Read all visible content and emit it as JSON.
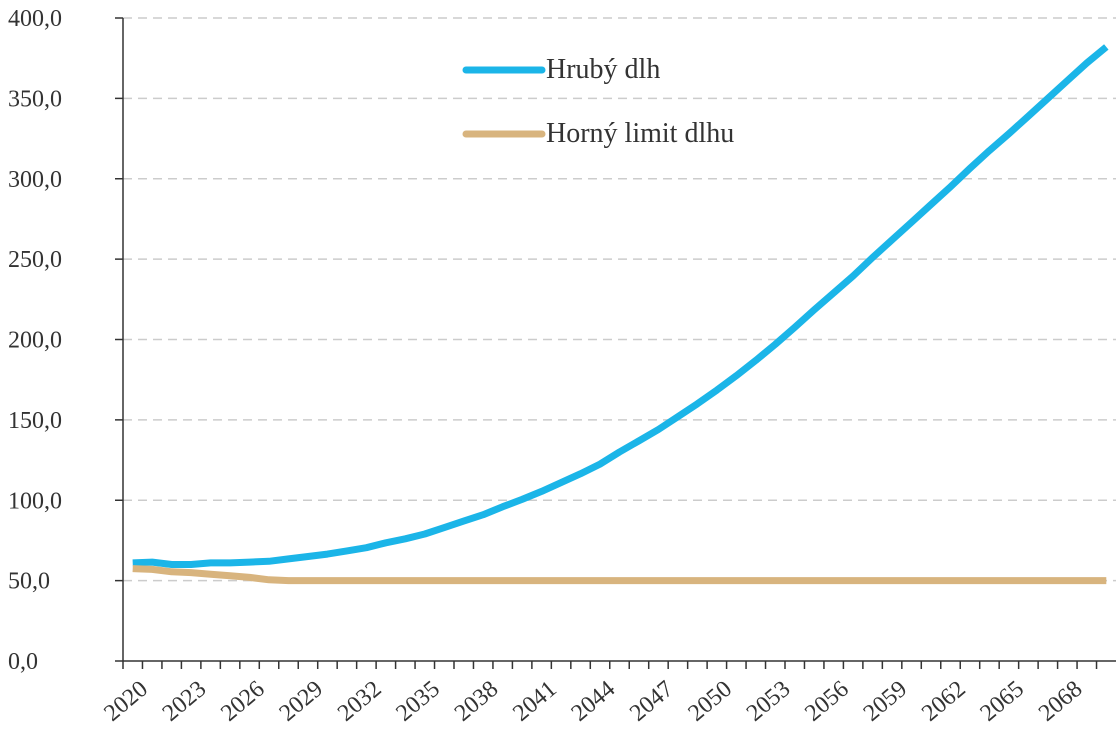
{
  "chart_data": {
    "type": "line",
    "categories": [
      "2020",
      null,
      null,
      "2023",
      null,
      null,
      "2026",
      null,
      null,
      "2029",
      null,
      null,
      "2032",
      null,
      null,
      "2035",
      null,
      null,
      "2038",
      null,
      null,
      "2041",
      null,
      null,
      "2044",
      null,
      null,
      "2047",
      null,
      null,
      "2050",
      null,
      null,
      "2053",
      null,
      null,
      "2056",
      null,
      null,
      "2059",
      null,
      null,
      "2062",
      null,
      null,
      "2065",
      null,
      null,
      "2068",
      null,
      null
    ],
    "series": [
      {
        "name": "Hrubý dlh",
        "color": "#1bb5e8",
        "values": [
          61,
          61.5,
          60,
          60,
          61,
          61,
          61.5,
          62,
          63.5,
          65,
          66.5,
          68.5,
          70.5,
          73.5,
          76,
          79,
          83,
          87,
          91,
          96,
          100.5,
          105.5,
          111,
          116.5,
          122.5,
          130,
          137,
          144,
          152,
          160,
          168.5,
          177.5,
          187,
          197,
          207.5,
          218.5,
          229,
          239.5,
          251,
          262,
          273,
          284,
          295,
          306.5,
          317.5,
          328,
          339,
          350,
          361,
          372,
          382
        ]
      },
      {
        "name": "Horný limit dlhu",
        "color": "#d8b47e",
        "values": [
          57.5,
          57,
          55.5,
          55,
          54,
          53,
          52,
          50.5,
          50,
          50,
          50,
          50,
          50,
          50,
          50,
          50,
          50,
          50,
          50,
          50,
          50,
          50,
          50,
          50,
          50,
          50,
          50,
          50,
          50,
          50,
          50,
          50,
          50,
          50,
          50,
          50,
          50,
          50,
          50,
          50,
          50,
          50,
          50,
          50,
          50,
          50,
          50,
          50,
          50,
          50,
          50
        ]
      }
    ],
    "ylim": [
      0,
      400
    ],
    "yticks": [
      {
        "value": 0,
        "label": "0,0"
      },
      {
        "value": 50,
        "label": "50,0"
      },
      {
        "value": 100,
        "label": "100,0"
      },
      {
        "value": 150,
        "label": "150,0"
      },
      {
        "value": 200,
        "label": "200,0"
      },
      {
        "value": 250,
        "label": "250,0"
      },
      {
        "value": 300,
        "label": "300,0"
      },
      {
        "value": 350,
        "label": "350,0"
      },
      {
        "value": 400,
        "label": "400,0"
      }
    ],
    "grid": true,
    "legend": "top"
  }
}
